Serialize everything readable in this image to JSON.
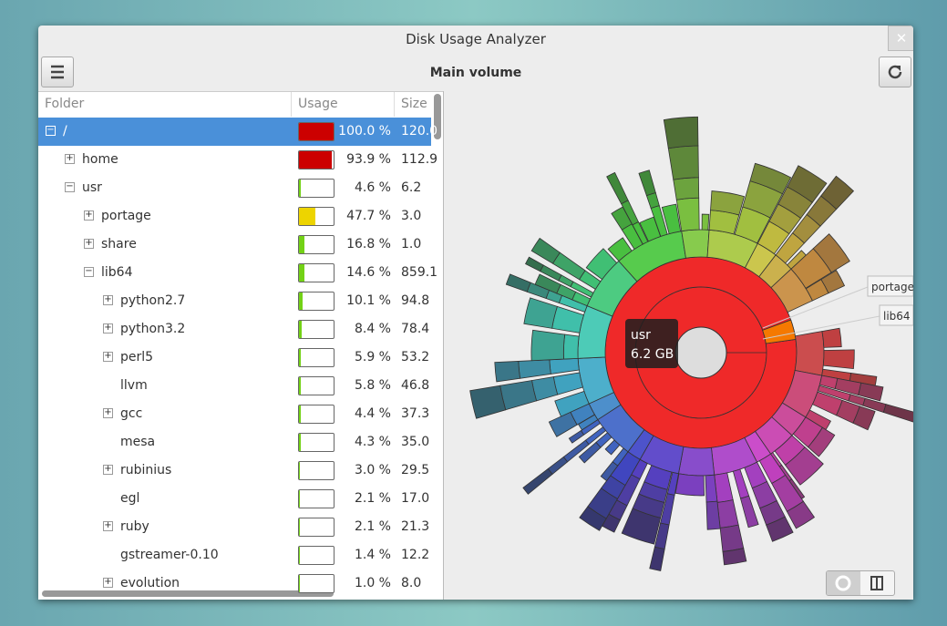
{
  "window": {
    "title": "Disk Usage Analyzer",
    "subtitle": "Main volume"
  },
  "tree": {
    "columns": [
      "Folder",
      "Usage",
      "Size"
    ],
    "rows": [
      {
        "name": "/",
        "usage": 100.0,
        "usage_label": "100.0 %",
        "size": "120.0"
      },
      {
        "name": "home",
        "usage": 93.9,
        "usage_label": "93.9 %",
        "size": "112.9"
      },
      {
        "name": "usr",
        "usage": 4.6,
        "usage_label": "4.6 %",
        "size": "6.2"
      },
      {
        "name": "portage",
        "usage": 47.7,
        "usage_label": "47.7 %",
        "size": "3.0"
      },
      {
        "name": "share",
        "usage": 16.8,
        "usage_label": "16.8 %",
        "size": "1.0"
      },
      {
        "name": "lib64",
        "usage": 14.6,
        "usage_label": "14.6 %",
        "size": "859.1"
      },
      {
        "name": "python2.7",
        "usage": 10.1,
        "usage_label": "10.1 %",
        "size": "94.8"
      },
      {
        "name": "python3.2",
        "usage": 8.4,
        "usage_label": "8.4 %",
        "size": "78.4"
      },
      {
        "name": "perl5",
        "usage": 5.9,
        "usage_label": "5.9 %",
        "size": "53.2"
      },
      {
        "name": "llvm",
        "usage": 5.8,
        "usage_label": "5.8 %",
        "size": "46.8"
      },
      {
        "name": "gcc",
        "usage": 4.4,
        "usage_label": "4.4 %",
        "size": "37.3"
      },
      {
        "name": "mesa",
        "usage": 4.3,
        "usage_label": "4.3 %",
        "size": "35.0"
      },
      {
        "name": "rubinius",
        "usage": 3.0,
        "usage_label": "3.0 %",
        "size": "29.5"
      },
      {
        "name": "egl",
        "usage": 2.1,
        "usage_label": "2.1 %",
        "size": "17.0"
      },
      {
        "name": "ruby",
        "usage": 2.1,
        "usage_label": "2.1 %",
        "size": "21.3"
      },
      {
        "name": "gstreamer-0.10",
        "usage": 1.4,
        "usage_label": "1.4 %",
        "size": "12.2"
      },
      {
        "name": "evolution",
        "usage": 1.0,
        "usage_label": "1.0 %",
        "size": "8.0"
      }
    ]
  },
  "chart": {
    "tooltip": {
      "name": "usr",
      "size": "6.2 GB"
    },
    "labels": [
      "portage",
      "lib64"
    ]
  }
}
